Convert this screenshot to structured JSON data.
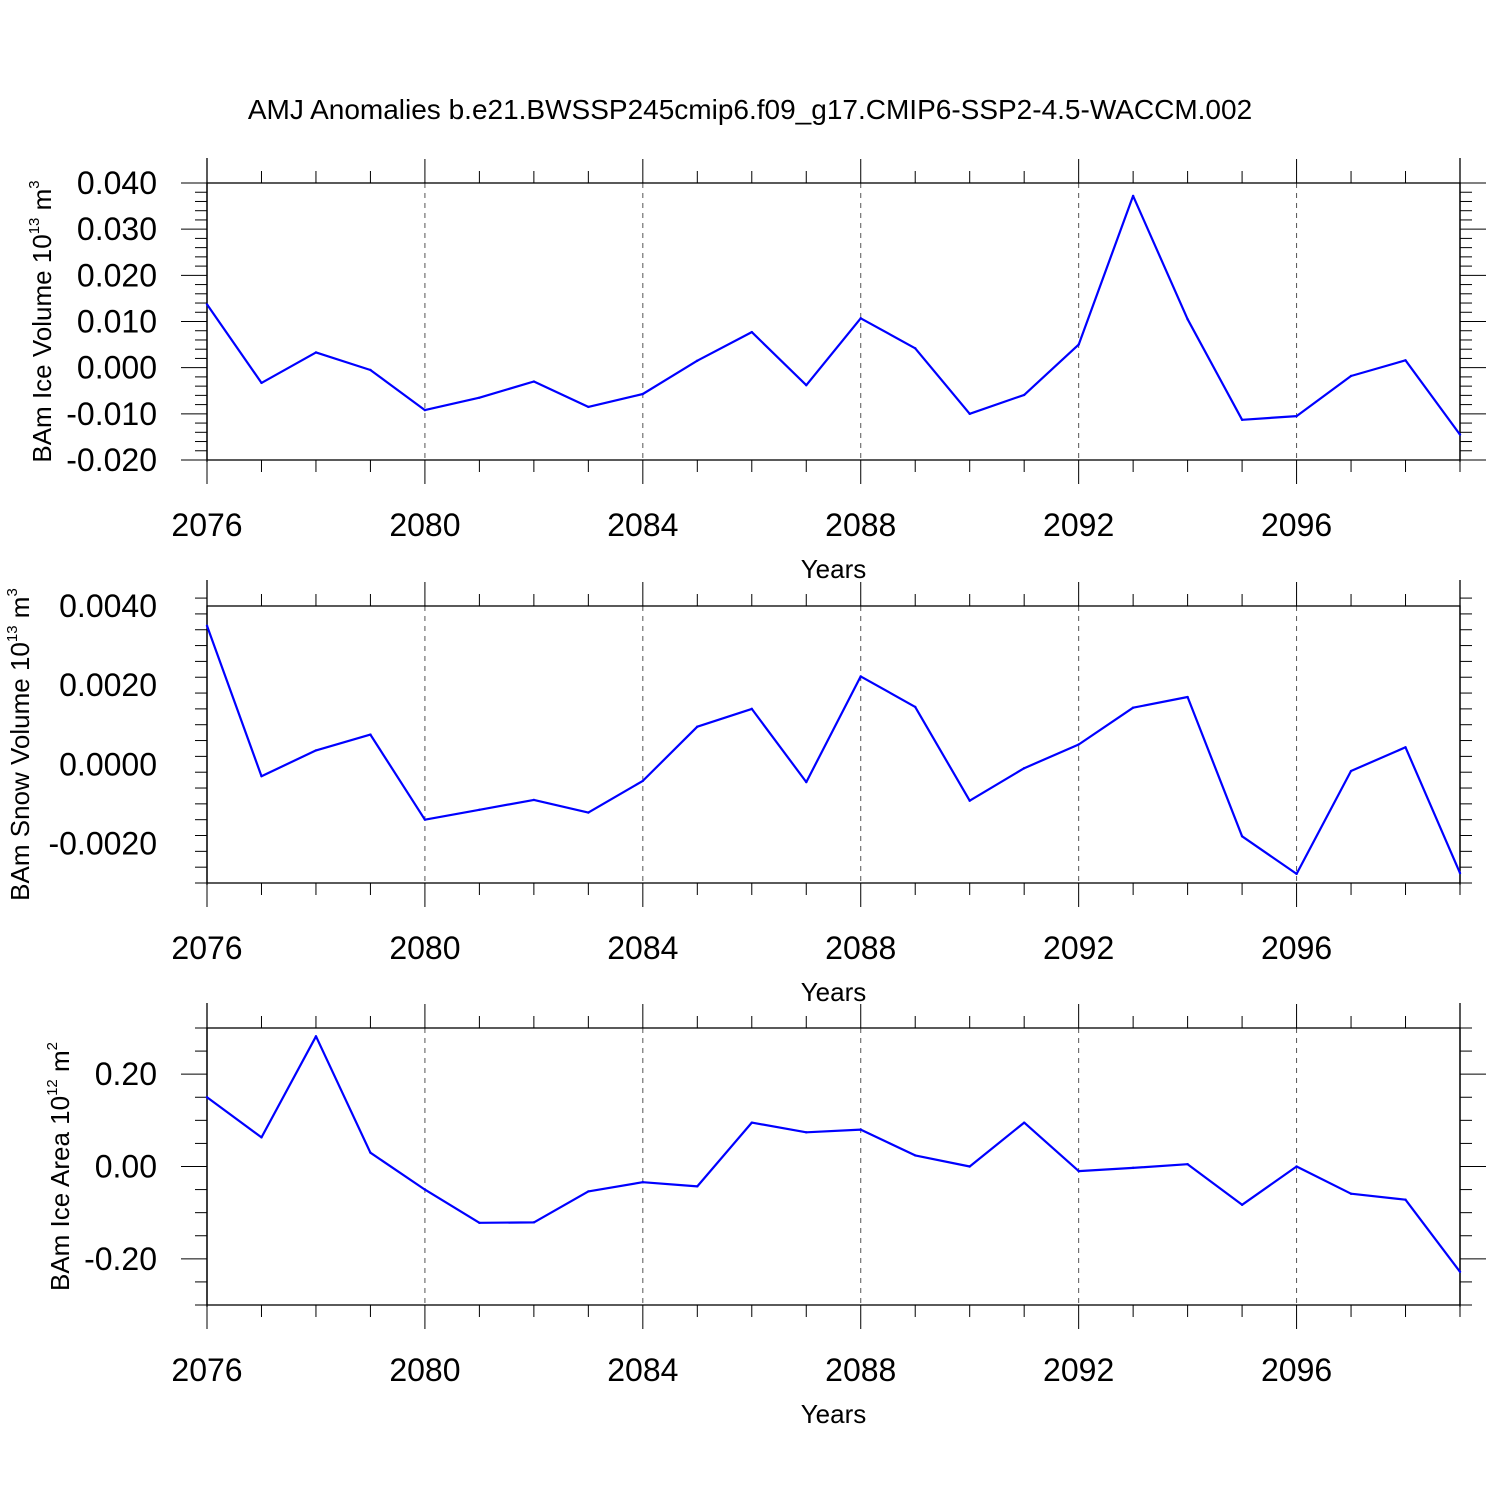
{
  "title": "AMJ Anomalies b.e21.BWSSP245cmip6.f09_g17.CMIP6-SSP2-4.5-WACCM.002",
  "line_color": "#0000ff",
  "chart_data": [
    {
      "type": "line",
      "id": "ice_volume",
      "ylabel_main": "BAm Ice Volume 10",
      "ylabel_exp": "13",
      "ylabel_unit": " m",
      "ylabel_unit_exp": "3",
      "xlabel": "Years",
      "xlim": [
        2076,
        2099
      ],
      "ylim": [
        -0.02,
        0.04
      ],
      "yticks": [
        -0.02,
        -0.01,
        0.0,
        0.01,
        0.02,
        0.03,
        0.04
      ],
      "ytick_labels": [
        "-0.020",
        "-0.010",
        "0.000",
        "0.010",
        "0.020",
        "0.030",
        "0.040"
      ],
      "yminor": 0.002,
      "xticks": [
        2076,
        2080,
        2084,
        2088,
        2092,
        2096
      ],
      "xtick_labels": [
        "2076",
        "2080",
        "2084",
        "2088",
        "2092",
        "2096"
      ],
      "x": [
        2076,
        2077,
        2078,
        2079,
        2080,
        2081,
        2082,
        2083,
        2084,
        2085,
        2086,
        2087,
        2088,
        2089,
        2090,
        2091,
        2092,
        2093,
        2094,
        2095,
        2096,
        2097,
        2098,
        2099
      ],
      "y": [
        0.0137,
        -0.0033,
        0.0033,
        -0.0005,
        -0.0092,
        -0.0065,
        -0.003,
        -0.0085,
        -0.0057,
        0.0015,
        0.0077,
        -0.0038,
        0.0107,
        0.0042,
        -0.01,
        -0.0059,
        0.005,
        0.0372,
        0.0105,
        -0.0113,
        -0.0105,
        -0.0018,
        0.0016,
        -0.0145
      ]
    },
    {
      "type": "line",
      "id": "snow_volume",
      "ylabel_main": "BAm Snow Volume 10",
      "ylabel_exp": "13",
      "ylabel_unit": " m",
      "ylabel_unit_exp": "3",
      "xlabel": "Years",
      "xlim": [
        2076,
        2099
      ],
      "ylim": [
        -0.003,
        0.004
      ],
      "yticks": [
        -0.002,
        0.0,
        0.002,
        0.004
      ],
      "ytick_labels": [
        "-0.0020",
        "0.0000",
        "0.0020",
        "0.0040"
      ],
      "yminor": 0.0004,
      "xticks": [
        2076,
        2080,
        2084,
        2088,
        2092,
        2096
      ],
      "xtick_labels": [
        "2076",
        "2080",
        "2084",
        "2088",
        "2092",
        "2096"
      ],
      "x": [
        2076,
        2077,
        2078,
        2079,
        2080,
        2081,
        2082,
        2083,
        2084,
        2085,
        2086,
        2087,
        2088,
        2089,
        2090,
        2091,
        2092,
        2093,
        2094,
        2095,
        2096,
        2097,
        2098,
        2099
      ],
      "y": [
        0.0035,
        -0.0003,
        0.00035,
        0.00075,
        -0.0014,
        -0.00115,
        -0.0009,
        -0.00122,
        -0.00042,
        0.00095,
        0.0014,
        -0.00045,
        0.00222,
        0.00145,
        -0.00092,
        -0.0001,
        0.0005,
        0.00143,
        0.0017,
        -0.00182,
        -0.00277,
        -0.00017,
        0.00043,
        -0.00275
      ]
    },
    {
      "type": "line",
      "id": "ice_area",
      "ylabel_main": "BAm Ice Area 10",
      "ylabel_exp": "12",
      "ylabel_unit": " m",
      "ylabel_unit_exp": "2",
      "xlabel": "Years",
      "xlim": [
        2076,
        2099
      ],
      "ylim": [
        -0.3,
        0.3
      ],
      "yticks": [
        -0.2,
        0.0,
        0.2
      ],
      "ytick_labels": [
        "-0.20",
        "0.00",
        "0.20"
      ],
      "yminor": 0.05,
      "xticks": [
        2076,
        2080,
        2084,
        2088,
        2092,
        2096
      ],
      "xtick_labels": [
        "2076",
        "2080",
        "2084",
        "2088",
        "2092",
        "2096"
      ],
      "x": [
        2076,
        2077,
        2078,
        2079,
        2080,
        2081,
        2082,
        2083,
        2084,
        2085,
        2086,
        2087,
        2088,
        2089,
        2090,
        2091,
        2092,
        2093,
        2094,
        2095,
        2096,
        2097,
        2098,
        2099
      ],
      "y": [
        0.15,
        0.063,
        0.282,
        0.03,
        -0.05,
        -0.122,
        -0.121,
        -0.054,
        -0.034,
        -0.043,
        0.095,
        0.074,
        0.08,
        0.024,
        0.0,
        0.095,
        -0.01,
        -0.003,
        0.005,
        -0.083,
        0.0,
        -0.059,
        -0.072,
        -0.228
      ]
    }
  ]
}
